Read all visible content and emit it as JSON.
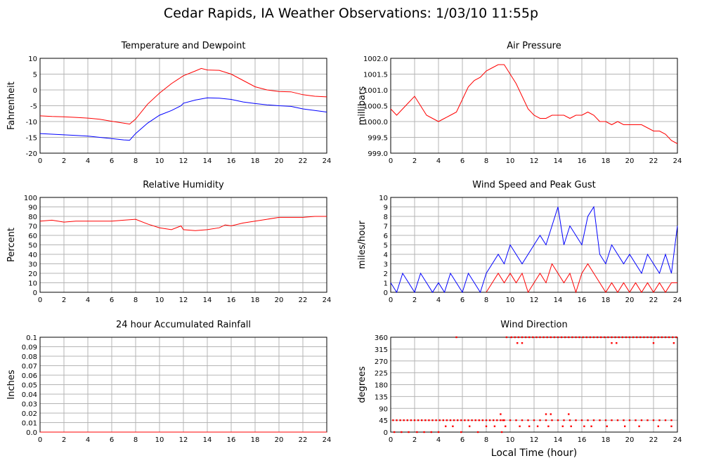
{
  "page": {
    "title": "Cedar Rapids, IA Weather Observations: 1/03/10 11:55p",
    "x_axis_label": "Local Time (hour)"
  },
  "chart_data": [
    {
      "id": "temp",
      "type": "line",
      "title": "Temperature and Dewpoint",
      "ylabel": "Fahrenheit",
      "xlabel": "",
      "xlim": [
        0,
        24
      ],
      "ylim": [
        -20,
        10
      ],
      "xticks": [
        0,
        2,
        4,
        6,
        8,
        10,
        12,
        14,
        16,
        18,
        20,
        22,
        24
      ],
      "yticks": [
        -20,
        -15,
        -10,
        -5,
        0,
        5,
        10
      ],
      "grid": true,
      "series": [
        {
          "color": "#ff0000",
          "x": [
            0,
            1,
            2,
            3,
            4,
            5,
            6,
            7,
            7.5,
            8,
            9,
            10,
            11,
            12,
            13,
            13.5,
            14,
            15,
            16,
            17,
            18,
            19,
            20,
            21,
            22,
            23,
            24
          ],
          "y": [
            -8.2,
            -8.4,
            -8.5,
            -8.7,
            -8.9,
            -9.3,
            -9.9,
            -10.5,
            -10.8,
            -9.2,
            -4.5,
            -1.0,
            2.0,
            4.5,
            6.0,
            6.8,
            6.3,
            6.2,
            5.0,
            3.0,
            1.0,
            0.0,
            -0.5,
            -0.6,
            -1.5,
            -2.0,
            -2.2
          ]
        },
        {
          "color": "#0000ff",
          "x": [
            0,
            1,
            2,
            3,
            4,
            5,
            6,
            7,
            7.5,
            8,
            9,
            10,
            11,
            11.8,
            12,
            13,
            14,
            15,
            15.5,
            16,
            17,
            18,
            19,
            20,
            21,
            22,
            23,
            24
          ],
          "y": [
            -13.8,
            -14.0,
            -14.2,
            -14.4,
            -14.6,
            -15.0,
            -15.4,
            -15.8,
            -15.9,
            -13.8,
            -10.5,
            -8.0,
            -6.5,
            -5.0,
            -4.2,
            -3.2,
            -2.5,
            -2.6,
            -2.8,
            -3.0,
            -3.8,
            -4.3,
            -4.7,
            -5.0,
            -5.2,
            -6.0,
            -6.5,
            -7.0
          ]
        }
      ]
    },
    {
      "id": "pressure",
      "type": "line",
      "title": "Air Pressure",
      "ylabel": "millibars",
      "xlabel": "",
      "xlim": [
        0,
        24
      ],
      "ylim": [
        999.0,
        1002.0
      ],
      "xticks": [
        0,
        2,
        4,
        6,
        8,
        10,
        12,
        14,
        16,
        18,
        20,
        22,
        24
      ],
      "yticks": [
        999.0,
        999.5,
        1000.0,
        1000.5,
        1001.0,
        1001.5,
        1002.0
      ],
      "ytick_labels": [
        "999.0",
        "999.5",
        "1000.0",
        "1000.5",
        "1001.0",
        "1001.5",
        "1002.0"
      ],
      "grid": true,
      "series": [
        {
          "color": "#ff0000",
          "x": [
            0,
            0.5,
            1,
            1.5,
            2,
            2.5,
            3,
            3.5,
            4,
            4.5,
            5,
            5.5,
            6,
            6.5,
            7,
            7.5,
            8,
            8.5,
            9,
            9.5,
            10,
            10.5,
            11,
            11.5,
            12,
            12.5,
            13,
            13.5,
            14,
            14.5,
            15,
            15.5,
            16,
            16.5,
            17,
            17.5,
            18,
            18.5,
            19,
            19.5,
            20,
            20.5,
            21,
            21.5,
            22,
            22.5,
            23,
            23.5,
            24
          ],
          "y": [
            1000.4,
            1000.2,
            1000.4,
            1000.6,
            1000.8,
            1000.5,
            1000.2,
            1000.1,
            1000.0,
            1000.1,
            1000.2,
            1000.3,
            1000.7,
            1001.1,
            1001.3,
            1001.4,
            1001.6,
            1001.7,
            1001.8,
            1001.8,
            1001.5,
            1001.2,
            1000.8,
            1000.4,
            1000.2,
            1000.1,
            1000.1,
            1000.2,
            1000.2,
            1000.2,
            1000.1,
            1000.2,
            1000.2,
            1000.3,
            1000.2,
            1000.0,
            1000.0,
            999.9,
            1000.0,
            999.9,
            999.9,
            999.9,
            999.9,
            999.8,
            999.7,
            999.7,
            999.6,
            999.4,
            999.3
          ]
        }
      ]
    },
    {
      "id": "humidity",
      "type": "line",
      "title": "Relative Humidity",
      "ylabel": "Percent",
      "xlabel": "",
      "xlim": [
        0,
        24
      ],
      "ylim": [
        0,
        100
      ],
      "xticks": [
        0,
        2,
        4,
        6,
        8,
        10,
        12,
        14,
        16,
        18,
        20,
        22,
        24
      ],
      "yticks": [
        0,
        10,
        20,
        30,
        40,
        50,
        60,
        70,
        80,
        90,
        100
      ],
      "grid": true,
      "series": [
        {
          "color": "#ff0000",
          "x": [
            0,
            1,
            2,
            3,
            4,
            5,
            6,
            7,
            8,
            9,
            10,
            11,
            11.8,
            12,
            13,
            14,
            15,
            15.5,
            16,
            17,
            18,
            19,
            20,
            21,
            22,
            23,
            24
          ],
          "y": [
            75,
            76,
            74,
            75,
            75,
            75,
            75,
            76,
            77,
            72,
            68,
            66,
            70,
            66,
            65,
            66,
            68,
            71,
            70,
            73,
            75,
            77,
            79,
            79,
            79,
            80,
            80
          ]
        }
      ]
    },
    {
      "id": "wind",
      "type": "line",
      "title": "Wind Speed and Peak Gust",
      "ylabel": "miles/hour",
      "xlabel": "",
      "xlim": [
        0,
        24
      ],
      "ylim": [
        0,
        10
      ],
      "xticks": [
        0,
        2,
        4,
        6,
        8,
        10,
        12,
        14,
        16,
        18,
        20,
        22,
        24
      ],
      "yticks": [
        0,
        1,
        2,
        3,
        4,
        5,
        6,
        7,
        8,
        9,
        10
      ],
      "grid": true,
      "series": [
        {
          "color": "#0000ff",
          "x": [
            0,
            0.5,
            1,
            1.5,
            2,
            2.5,
            3,
            3.5,
            4,
            4.5,
            5,
            5.5,
            6,
            6.5,
            7,
            7.5,
            8,
            8.5,
            9,
            9.5,
            10,
            10.5,
            11,
            11.5,
            12,
            12.5,
            13,
            13.5,
            14,
            14.5,
            15,
            15.5,
            16,
            16.5,
            17,
            17.5,
            18,
            18.5,
            19,
            19.5,
            20,
            20.5,
            21,
            21.5,
            22,
            22.5,
            23,
            23.5,
            24
          ],
          "y": [
            1,
            0,
            2,
            1,
            0,
            2,
            1,
            0,
            1,
            0,
            2,
            1,
            0,
            2,
            1,
            0,
            2,
            3,
            4,
            3,
            5,
            4,
            3,
            4,
            5,
            6,
            5,
            7,
            9,
            5,
            7,
            6,
            5,
            8,
            9,
            4,
            3,
            5,
            4,
            3,
            4,
            3,
            2,
            4,
            3,
            2,
            4,
            2,
            7
          ]
        },
        {
          "color": "#ff0000",
          "x": [
            8,
            8.5,
            9,
            9.5,
            10,
            10.5,
            11,
            11.5,
            12,
            12.5,
            13,
            13.5,
            14,
            14.5,
            15,
            15.5,
            16,
            16.5,
            17,
            17.5,
            18,
            18.5,
            19,
            19.5,
            20,
            20.5,
            21,
            21.5,
            22,
            22.5,
            23,
            23.5,
            24
          ],
          "y": [
            0,
            1,
            2,
            1,
            2,
            1,
            2,
            0,
            1,
            2,
            1,
            3,
            2,
            1,
            2,
            0,
            2,
            3,
            2,
            1,
            0,
            1,
            0,
            1,
            0,
            1,
            0,
            1,
            0,
            1,
            0,
            1,
            1
          ]
        }
      ]
    },
    {
      "id": "rain",
      "type": "line",
      "title": "24 hour Accumulated Rainfall",
      "ylabel": "Inches",
      "xlabel": "",
      "xlim": [
        0,
        24
      ],
      "ylim": [
        0,
        0.1
      ],
      "xticks": [
        0,
        2,
        4,
        6,
        8,
        10,
        12,
        14,
        16,
        18,
        20,
        22,
        24
      ],
      "yticks": [
        0,
        0.01,
        0.02,
        0.03,
        0.04,
        0.05,
        0.06,
        0.07,
        0.08,
        0.09,
        0.1
      ],
      "ytick_labels": [
        "0.0",
        "0.01",
        "0.02",
        "0.03",
        "0.04",
        "0.05",
        "0.06",
        "0.07",
        "0.08",
        "0.09",
        "0.1"
      ],
      "grid": true,
      "series": [
        {
          "color": "#ff0000",
          "x": [
            0,
            24
          ],
          "y": [
            0,
            0
          ]
        }
      ]
    },
    {
      "id": "direction",
      "type": "scatter",
      "title": "Wind Direction",
      "ylabel": "degrees",
      "xlabel": "Local Time (hour)",
      "xlim": [
        0,
        24
      ],
      "ylim": [
        0,
        360
      ],
      "xticks": [
        0,
        2,
        4,
        6,
        8,
        10,
        12,
        14,
        16,
        18,
        20,
        22,
        24
      ],
      "yticks": [
        0,
        45,
        90,
        135,
        180,
        225,
        270,
        315,
        360
      ],
      "grid": true,
      "series": [
        {
          "color": "#ff0000",
          "x": [
            0.2,
            0.5,
            0.8,
            1.1,
            1.4,
            1.7,
            2.0,
            2.3,
            2.6,
            2.9,
            3.2,
            3.5,
            3.8,
            4.1,
            4.4,
            4.7,
            5.0,
            5.3,
            5.6,
            5.9,
            6.2,
            6.5,
            6.8,
            7.1,
            7.4,
            7.7,
            8.0,
            8.3,
            8.6,
            8.9,
            9.2,
            9.5,
            0.3,
            0.9,
            1.5,
            2.2,
            2.8,
            3.4,
            4.0,
            4.6,
            5.2,
            5.9,
            6.6,
            7.3,
            8.0,
            8.7,
            9.3,
            9.6,
            5.5,
            9.7,
            10.1,
            10.4,
            10.7,
            11.0,
            11.3,
            11.6,
            11.9,
            12.2,
            12.5,
            12.8,
            13.1,
            13.4,
            13.7,
            14.0,
            14.3,
            14.6,
            14.9,
            15.2,
            15.5,
            15.8,
            16.1,
            16.4,
            16.7,
            17.0,
            17.3,
            17.6,
            17.9,
            18.2,
            18.5,
            18.8,
            19.1,
            19.4,
            19.7,
            20.0,
            20.3,
            20.6,
            20.9,
            21.2,
            21.5,
            21.8,
            22.1,
            22.4,
            22.7,
            23.0,
            23.3,
            23.6,
            23.9,
            10.6,
            11.0,
            18.5,
            18.9,
            22.0,
            23.7,
            9.4,
            10.0,
            10.5,
            11.0,
            11.5,
            12.0,
            12.5,
            13.0,
            13.5,
            14.0,
            14.5,
            15.0,
            15.5,
            16.0,
            16.5,
            17.0,
            17.5,
            18.0,
            18.5,
            19.0,
            19.5,
            20.0,
            20.5,
            21.0,
            21.5,
            22.0,
            22.5,
            23.0,
            23.5,
            10.8,
            11.6,
            12.3,
            13.2,
            14.4,
            15.1,
            16.2,
            16.8,
            18.1,
            19.6,
            20.8,
            22.4,
            23.5,
            13.0,
            13.4,
            14.9,
            9.2
          ],
          "y": [
            45,
            45,
            45,
            45,
            45,
            45,
            45,
            45,
            45,
            45,
            45,
            45,
            45,
            45,
            45,
            45,
            45,
            45,
            45,
            45,
            45,
            45,
            45,
            45,
            45,
            45,
            45,
            45,
            45,
            45,
            45,
            45,
            0,
            0,
            0,
            0,
            0,
            0,
            0,
            22,
            22,
            0,
            22,
            0,
            22,
            22,
            0,
            22,
            360,
            360,
            360,
            360,
            360,
            360,
            360,
            360,
            360,
            360,
            360,
            360,
            360,
            360,
            360,
            360,
            360,
            360,
            360,
            360,
            360,
            360,
            360,
            360,
            360,
            360,
            360,
            360,
            360,
            360,
            360,
            360,
            360,
            360,
            360,
            360,
            360,
            360,
            360,
            360,
            360,
            360,
            360,
            360,
            360,
            360,
            360,
            360,
            360,
            338,
            338,
            338,
            338,
            338,
            338,
            45,
            45,
            45,
            45,
            45,
            45,
            45,
            45,
            45,
            45,
            45,
            45,
            45,
            45,
            45,
            45,
            45,
            45,
            45,
            45,
            45,
            45,
            45,
            45,
            45,
            45,
            45,
            45,
            45,
            22,
            22,
            22,
            22,
            22,
            22,
            22,
            22,
            22,
            22,
            22,
            22,
            22,
            68,
            68,
            68,
            68
          ]
        }
      ]
    }
  ]
}
